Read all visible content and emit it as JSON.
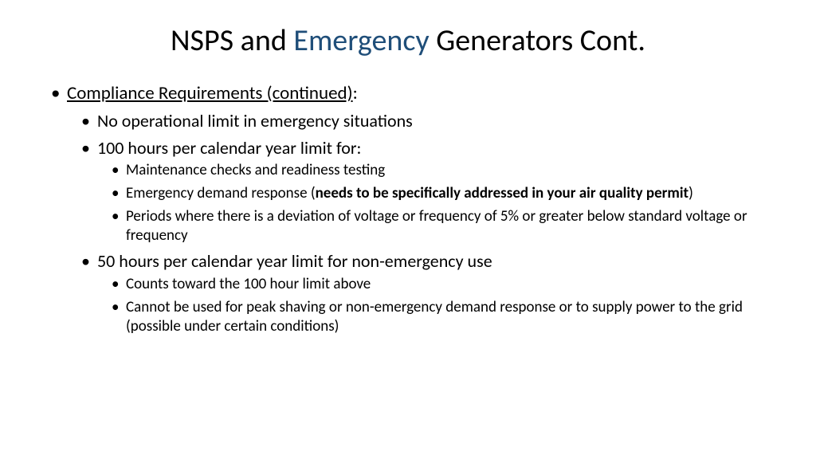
{
  "title": {
    "part1": "NSPS and ",
    "accent": "Emergency",
    "part2": " Generators Cont."
  },
  "colors": {
    "accent": "#1f4e79",
    "text": "#000000",
    "bg": "#ffffff"
  },
  "bullets": {
    "l1_heading": "Compliance Requirements (continued)",
    "l1_colon": ":",
    "l2_a": "No operational limit in emergency situations",
    "l2_b": "100 hours per calendar year limit for:",
    "l3_b1": "Maintenance checks and readiness testing",
    "l3_b2_pre": "Emergency demand response (",
    "l3_b2_bold": "needs to be specifically addressed in your air quality permit",
    "l3_b2_post": ")",
    "l3_b3": "Periods where there is a deviation of voltage or frequency of 5% or greater below standard voltage or frequency",
    "l2_c": "50 hours per calendar year limit for non-emergency use",
    "l3_c1": "Counts toward the 100 hour limit above",
    "l3_c2": "Cannot be used for peak shaving  or non-emergency demand response or to supply power to the grid (possible under certain conditions)"
  }
}
